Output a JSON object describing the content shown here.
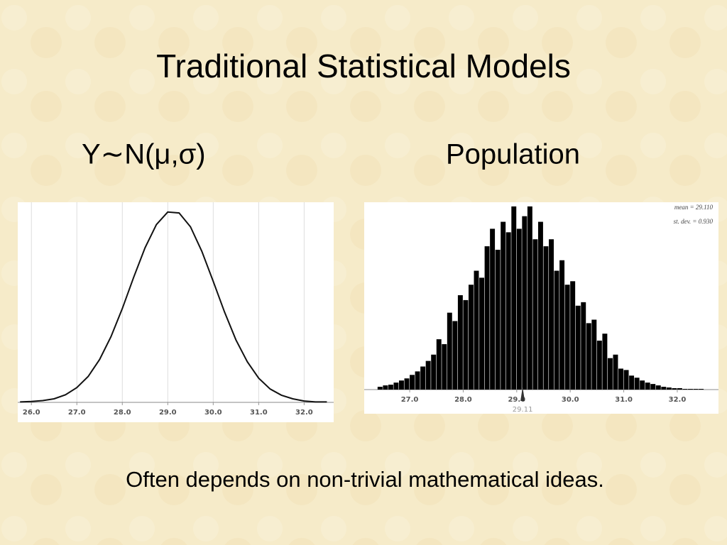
{
  "title": "Traditional Statistical Models",
  "labels": {
    "left": "Y∼N(μ,σ)",
    "right": "Population"
  },
  "footer": "Often depends on non-trivial mathematical ideas.",
  "chart_data": [
    {
      "type": "line",
      "color": "#111111",
      "grid": true,
      "x": [
        25.75,
        26.0,
        26.25,
        26.5,
        26.75,
        27.0,
        27.25,
        27.5,
        27.75,
        28.0,
        28.25,
        28.5,
        28.75,
        29.0,
        29.25,
        29.5,
        29.75,
        30.0,
        30.25,
        30.5,
        30.75,
        31.0,
        31.25,
        31.5,
        31.75,
        32.0,
        32.25,
        32.5
      ],
      "values": [
        0.001,
        0.002,
        0.004,
        0.008,
        0.017,
        0.033,
        0.058,
        0.096,
        0.147,
        0.21,
        0.28,
        0.346,
        0.398,
        0.426,
        0.424,
        0.393,
        0.338,
        0.271,
        0.202,
        0.14,
        0.091,
        0.054,
        0.03,
        0.016,
        0.008,
        0.003,
        0.001,
        0.001
      ],
      "xlim": [
        25.7,
        32.65
      ],
      "ylim": [
        0,
        0.44
      ],
      "xticks": [
        {
          "value": 26,
          "label": "26.0"
        },
        {
          "value": 27,
          "label": "27.0"
        },
        {
          "value": 28,
          "label": "28.0"
        },
        {
          "value": 29,
          "label": "29.0"
        },
        {
          "value": 30,
          "label": "30.0"
        },
        {
          "value": 31,
          "label": "31.0"
        },
        {
          "value": 32,
          "label": "32.0"
        }
      ]
    },
    {
      "type": "histogram",
      "color": "#000000",
      "bins": [
        26.4,
        26.5,
        26.6,
        26.7,
        26.8,
        26.9,
        27.0,
        27.1,
        27.2,
        27.3,
        27.4,
        27.5,
        27.6,
        27.7,
        27.8,
        27.9,
        28.0,
        28.1,
        28.2,
        28.3,
        28.4,
        28.5,
        28.6,
        28.7,
        28.8,
        28.9,
        29.0,
        29.1,
        29.2,
        29.3,
        29.4,
        29.5,
        29.6,
        29.7,
        29.8,
        29.9,
        30.0,
        30.1,
        30.2,
        30.3,
        30.4,
        30.5,
        30.6,
        30.7,
        30.8,
        30.9,
        31.0,
        31.1,
        31.2,
        31.3,
        31.4,
        31.5,
        31.6,
        31.7,
        31.8,
        31.9,
        32.0,
        32.1,
        32.2,
        32.3,
        32.4,
        32.5
      ],
      "values": [
        4,
        6,
        7,
        10,
        13,
        16,
        21,
        26,
        33,
        41,
        50,
        72,
        65,
        110,
        98,
        135,
        128,
        150,
        170,
        160,
        205,
        230,
        200,
        240,
        225,
        262,
        230,
        248,
        262,
        215,
        240,
        205,
        215,
        170,
        185,
        150,
        155,
        120,
        125,
        95,
        100,
        70,
        80,
        45,
        50,
        30,
        28,
        20,
        17,
        13,
        10,
        8,
        6,
        4,
        3,
        2,
        2,
        1,
        1,
        1,
        1
      ],
      "xlim": [
        26.15,
        32.77
      ],
      "ylim": [
        0,
        270
      ],
      "xticks": [
        {
          "value": 27,
          "label": "27.0"
        },
        {
          "value": 28,
          "label": "28.0"
        },
        {
          "value": 29,
          "label": "29.0"
        },
        {
          "value": 30,
          "label": "30.0"
        },
        {
          "value": 31,
          "label": "31.0"
        },
        {
          "value": 32,
          "label": "32.0"
        }
      ],
      "annotations": [
        "mean = 29.110",
        "st. dev. = 0.930"
      ],
      "marker": 29.11
    }
  ]
}
